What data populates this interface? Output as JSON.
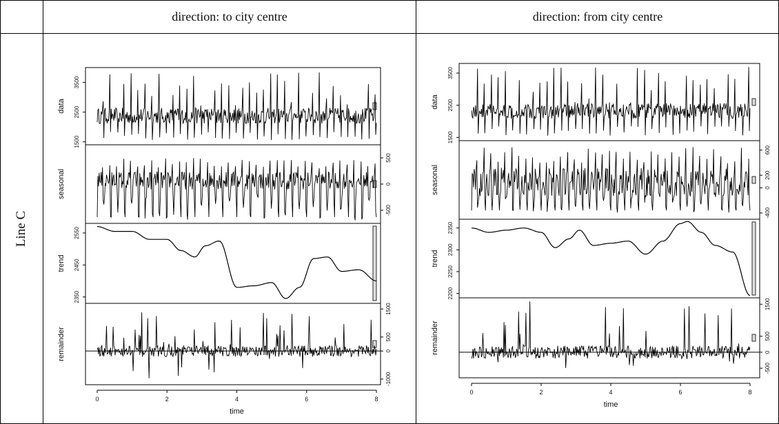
{
  "table": {
    "header_left": "direction: to city centre",
    "header_right": "direction: from city centre",
    "row_label": "Line C"
  },
  "chart_data": [
    {
      "type": "line",
      "title": "direction: to city centre",
      "xlabel": "time",
      "x_ticks": [
        0,
        2,
        4,
        6,
        8
      ],
      "xlim": [
        0,
        8
      ],
      "panels": [
        {
          "name": "data",
          "ylabel": "data",
          "ylim": [
            1400,
            4000
          ],
          "yticks": [
            1500,
            2500,
            3500
          ],
          "axis_side": "left",
          "baseline": 2350,
          "spread": 900,
          "peak_up": 3900,
          "peak_down": 1550
        },
        {
          "name": "seasonal",
          "ylabel": "seasonal",
          "ylim": [
            -750,
            750
          ],
          "yticks": [
            -500,
            0,
            500
          ],
          "axis_side": "right",
          "cycles": 40,
          "amplitude_up": 500,
          "amplitude_down": -700
        },
        {
          "name": "trend",
          "ylabel": "trend",
          "ylim": [
            2330,
            2580
          ],
          "yticks": [
            2350,
            2450,
            2550
          ],
          "axis_side": "left",
          "x": [
            0,
            0.5,
            1,
            1.5,
            2,
            2.4,
            2.8,
            3.1,
            3.5,
            4,
            4.5,
            5,
            5.4,
            5.8,
            6.2,
            6.6,
            7,
            7.5,
            8
          ],
          "values": [
            2570,
            2555,
            2555,
            2530,
            2530,
            2495,
            2475,
            2510,
            2525,
            2380,
            2385,
            2395,
            2345,
            2380,
            2470,
            2475,
            2430,
            2435,
            2400
          ]
        },
        {
          "name": "remainder",
          "ylabel": "remainder",
          "ylim": [
            -1200,
            1700
          ],
          "yticks": [
            -1000,
            0,
            500,
            1500
          ],
          "axis_side": "right",
          "spikes_up": 1400,
          "spikes_down": -1000
        }
      ]
    },
    {
      "type": "line",
      "title": "direction: from city centre",
      "xlabel": "time",
      "x_ticks": [
        0,
        2,
        4,
        6,
        8
      ],
      "xlim": [
        0,
        8
      ],
      "panels": [
        {
          "name": "data",
          "ylabel": "data",
          "ylim": [
            1400,
            3800
          ],
          "yticks": [
            1500,
            2500,
            3500
          ],
          "axis_side": "left",
          "baseline": 2300,
          "spread": 800,
          "peak_up": 3700,
          "peak_down": 1550
        },
        {
          "name": "seasonal",
          "ylabel": "seasonal",
          "ylim": [
            -500,
            750
          ],
          "yticks": [
            -400,
            0,
            200,
            600
          ],
          "axis_side": "right",
          "cycles": 40,
          "amplitude_up": 650,
          "amplitude_down": -400
        },
        {
          "name": "trend",
          "ylabel": "trend",
          "ylim": [
            2190,
            2370
          ],
          "yticks": [
            2200,
            2250,
            2300,
            2350
          ],
          "axis_side": "left",
          "x": [
            0,
            0.5,
            1,
            1.5,
            2,
            2.4,
            2.8,
            3.1,
            3.5,
            4,
            4.5,
            5,
            5.5,
            6,
            6.2,
            6.6,
            7,
            7.5,
            8
          ],
          "values": [
            2350,
            2340,
            2345,
            2350,
            2340,
            2305,
            2325,
            2345,
            2310,
            2315,
            2320,
            2290,
            2320,
            2360,
            2365,
            2340,
            2310,
            2295,
            2195
          ]
        },
        {
          "name": "remainder",
          "ylabel": "remainder",
          "ylim": [
            -800,
            1700
          ],
          "yticks": [
            -500,
            0,
            500,
            1500
          ],
          "axis_side": "right",
          "spikes_up": 1600,
          "spikes_down": -700
        }
      ]
    }
  ]
}
